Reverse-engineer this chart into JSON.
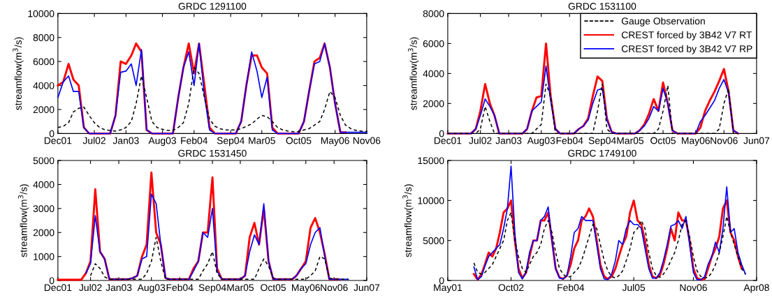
{
  "chart_data": [
    {
      "type": "line",
      "title": "GRDC 1291100",
      "ylabel": "streamflow(m$^{3}$/s)",
      "legend": false,
      "grid": false,
      "x": [
        "2001-12",
        "2002-01",
        "2002-02",
        "2002-03",
        "2002-04",
        "2002-05",
        "2002-06",
        "2002-07",
        "2002-08",
        "2002-09",
        "2002-10",
        "2002-11",
        "2002-12",
        "2003-01",
        "2003-02",
        "2003-03",
        "2003-04",
        "2003-05",
        "2003-06",
        "2003-07",
        "2003-08",
        "2003-09",
        "2003-10",
        "2003-11",
        "2003-12",
        "2004-01",
        "2004-02",
        "2004-03",
        "2004-04",
        "2004-05",
        "2004-06",
        "2004-07",
        "2004-08",
        "2004-09",
        "2004-10",
        "2004-11",
        "2004-12",
        "2005-01",
        "2005-02",
        "2005-03",
        "2005-04",
        "2005-05",
        "2005-06",
        "2005-07",
        "2005-08",
        "2005-09",
        "2005-10",
        "2005-11",
        "2005-12",
        "2006-01",
        "2006-02",
        "2006-03",
        "2006-04",
        "2006-05",
        "2006-06",
        "2006-07",
        "2006-08",
        "2006-09",
        "2006-10",
        "2006-11"
      ],
      "xlim": [
        "2001-12-01",
        "2006-11-01"
      ],
      "xticks": [
        {
          "value": "2001-12-01",
          "label": "Dec01"
        },
        {
          "value": "2002-07-01",
          "label": "Jul02"
        },
        {
          "value": "2003-01-01",
          "label": "Jan03"
        },
        {
          "value": "2003-08-01",
          "label": "Aug03"
        },
        {
          "value": "2004-02-01",
          "label": "Feb04"
        },
        {
          "value": "2004-09-01",
          "label": "Sep04"
        },
        {
          "value": "2005-03-01",
          "label": "Mar05"
        },
        {
          "value": "2005-10-01",
          "label": "Oct05"
        },
        {
          "value": "2006-05-01",
          "label": "May06"
        },
        {
          "value": "2006-11-01",
          "label": "Nov06"
        }
      ],
      "ylim": [
        0,
        10000
      ],
      "yticks": [
        0,
        2000,
        4000,
        6000,
        8000,
        10000
      ],
      "series": [
        {
          "color": "#000000",
          "line_style": "dashed",
          "values": [
            500,
            600,
            900,
            1800,
            2100,
            2200,
            1500,
            900,
            500,
            300,
            250,
            200,
            300,
            500,
            1000,
            2500,
            4800,
            3000,
            1000,
            500,
            350,
            250,
            250,
            500,
            900,
            2500,
            5500,
            5000,
            3000,
            1200,
            600,
            400,
            300,
            300,
            300,
            400,
            600,
            800,
            1200,
            1500,
            1400,
            1000,
            500,
            300,
            200,
            150,
            150,
            300,
            400,
            700,
            1000,
            2000,
            3500,
            3000,
            1500,
            700,
            400,
            250,
            200,
            150
          ]
        },
        {
          "color": "#ff0000",
          "line_style": "solid",
          "values": [
            4000,
            4300,
            5800,
            4500,
            4000,
            500,
            0,
            0,
            0,
            0,
            0,
            1500,
            6000,
            5800,
            6500,
            7500,
            6800,
            300,
            0,
            0,
            0,
            0,
            0,
            3000,
            5500,
            7500,
            5000,
            7500,
            4000,
            500,
            0,
            0,
            0,
            0,
            0,
            1000,
            4000,
            6500,
            6500,
            5500,
            5000,
            500,
            0,
            0,
            0,
            0,
            0,
            1000,
            3500,
            6000,
            6300,
            7500,
            5500,
            2500,
            100,
            100,
            null,
            null,
            null,
            null
          ]
        },
        {
          "color": "#0000ff",
          "line_style": "solid",
          "values": [
            3000,
            4300,
            4800,
            3500,
            3500,
            500,
            0,
            0,
            0,
            0,
            0,
            1500,
            5100,
            5200,
            5800,
            4000,
            7000,
            300,
            0,
            0,
            0,
            0,
            0,
            3000,
            5500,
            6800,
            4000,
            7500,
            3200,
            300,
            0,
            0,
            0,
            0,
            0,
            1000,
            4000,
            6800,
            5200,
            3000,
            4700,
            300,
            0,
            0,
            0,
            0,
            0,
            1000,
            3500,
            5800,
            6000,
            7500,
            5500,
            2500,
            100,
            100,
            100,
            100,
            100,
            100
          ]
        }
      ]
    },
    {
      "type": "line",
      "title": "GRDC 1531100",
      "ylabel": "streamflow(m$^{3}$/s)",
      "legend": "top right",
      "grid": false,
      "x": [
        "2001-12",
        "2002-01",
        "2002-02",
        "2002-03",
        "2002-04",
        "2002-05",
        "2002-06",
        "2002-07",
        "2002-08",
        "2002-09",
        "2002-10",
        "2002-11",
        "2002-12",
        "2003-01",
        "2003-02",
        "2003-03",
        "2003-04",
        "2003-05",
        "2003-06",
        "2003-07",
        "2003-08",
        "2003-09",
        "2003-10",
        "2003-11",
        "2003-12",
        "2004-01",
        "2004-02",
        "2004-03",
        "2004-04",
        "2004-05",
        "2004-06",
        "2004-07",
        "2004-08",
        "2004-09",
        "2004-10",
        "2004-11",
        "2004-12",
        "2005-01",
        "2005-02",
        "2005-03",
        "2005-04",
        "2005-05",
        "2005-06",
        "2005-07",
        "2005-08",
        "2005-09",
        "2005-10",
        "2005-11",
        "2005-12",
        "2006-01",
        "2006-02",
        "2006-03",
        "2006-04",
        "2006-05",
        "2006-06",
        "2006-07",
        "2006-08",
        "2006-09",
        "2006-10",
        "2006-11",
        "2006-12",
        "2007-01",
        "2007-02"
      ],
      "xlim": [
        "2001-12-01",
        "2007-06-01"
      ],
      "xticks": [
        {
          "value": "2001-12-01",
          "label": "Dec01"
        },
        {
          "value": "2002-07-01",
          "label": "Jul02"
        },
        {
          "value": "2003-01-01",
          "label": "Jan03"
        },
        {
          "value": "2003-08-01",
          "label": "Aug03"
        },
        {
          "value": "2004-02-01",
          "label": "Feb04"
        },
        {
          "value": "2004-09-01",
          "label": "Sep04"
        },
        {
          "value": "2005-03-01",
          "label": "Mar05"
        },
        {
          "value": "2005-10-01",
          "label": "Oct05"
        },
        {
          "value": "2006-05-01",
          "label": "May06"
        },
        {
          "value": "2006-11-01",
          "label": "Nov06"
        },
        {
          "value": "2007-06-01",
          "label": "Jun07"
        }
      ],
      "ylim": [
        0,
        8000
      ],
      "yticks": [
        0,
        2000,
        4000,
        6000,
        8000
      ],
      "series": [
        {
          "name": "Gauge Observation",
          "color": "#000000",
          "line_style": "dashed",
          "values": [
            0,
            0,
            0,
            0,
            0,
            0,
            0,
            300,
            1800,
            800,
            0,
            0,
            0,
            0,
            0,
            0,
            0,
            0,
            0,
            300,
            600,
            3300,
            2500,
            0,
            0,
            0,
            0,
            0,
            0,
            0,
            0,
            0,
            1500,
            3300,
            300,
            0,
            0,
            0,
            0,
            0,
            0,
            0,
            0,
            0,
            0,
            300,
            1500,
            3200,
            0,
            0,
            0,
            0,
            0,
            0,
            0,
            0,
            0,
            0,
            300,
            2000,
            3000,
            0,
            0
          ]
        },
        {
          "name": "CREST forced by 3B42 V7 RT",
          "color": "#ff0000",
          "line_style": "solid",
          "values": [
            0,
            0,
            0,
            0,
            0,
            0,
            300,
            1500,
            3300,
            2000,
            1200,
            0,
            0,
            0,
            0,
            0,
            0,
            300,
            1500,
            2400,
            2500,
            6000,
            2500,
            300,
            0,
            0,
            0,
            0,
            300,
            500,
            1000,
            2500,
            3800,
            3500,
            1000,
            100,
            0,
            0,
            0,
            0,
            0,
            200,
            600,
            1300,
            2300,
            1500,
            3400,
            2000,
            200,
            0,
            0,
            0,
            0,
            0,
            400,
            1500,
            2200,
            2800,
            3500,
            4300,
            2800,
            200,
            0
          ]
        },
        {
          "name": "CREST forced by 3B42 V7 RP",
          "color": "#0000ff",
          "line_style": "solid",
          "values": [
            0,
            0,
            0,
            0,
            0,
            0,
            300,
            1200,
            2300,
            1800,
            1200,
            0,
            0,
            0,
            0,
            0,
            0,
            300,
            1500,
            1800,
            2100,
            4500,
            2200,
            300,
            0,
            0,
            0,
            0,
            300,
            500,
            900,
            2000,
            2900,
            3000,
            900,
            100,
            0,
            0,
            0,
            0,
            0,
            200,
            500,
            1000,
            1800,
            1500,
            3000,
            2000,
            200,
            0,
            0,
            0,
            0,
            0,
            800,
            1200,
            1700,
            2200,
            3000,
            3600,
            2700,
            200,
            0
          ]
        }
      ]
    },
    {
      "type": "line",
      "title": "GRDC 1531450",
      "ylabel": "streamflow(m$^{3}$/s)",
      "legend": false,
      "grid": false,
      "x": [
        "2001-12",
        "2002-01",
        "2002-02",
        "2002-03",
        "2002-04",
        "2002-05",
        "2002-06",
        "2002-07",
        "2002-08",
        "2002-09",
        "2002-10",
        "2002-11",
        "2002-12",
        "2003-01",
        "2003-02",
        "2003-03",
        "2003-04",
        "2003-05",
        "2003-06",
        "2003-07",
        "2003-08",
        "2003-09",
        "2003-10",
        "2003-11",
        "2003-12",
        "2004-01",
        "2004-02",
        "2004-03",
        "2004-04",
        "2004-05",
        "2004-06",
        "2004-07",
        "2004-08",
        "2004-09",
        "2004-10",
        "2004-11",
        "2004-12",
        "2005-01",
        "2005-02",
        "2005-03",
        "2005-04",
        "2005-05",
        "2005-06",
        "2005-07",
        "2005-08",
        "2005-09",
        "2005-10",
        "2005-11",
        "2005-12",
        "2006-01",
        "2006-02",
        "2006-03",
        "2006-04",
        "2006-05",
        "2006-06",
        "2006-07",
        "2006-08",
        "2006-09",
        "2006-10",
        "2006-11",
        "2006-12",
        "2007-01",
        "2007-02"
      ],
      "xlim": [
        "2001-12-01",
        "2007-06-01"
      ],
      "xticks": [
        {
          "value": "2001-12-01",
          "label": "Dec01"
        },
        {
          "value": "2002-07-01",
          "label": "Jul02"
        },
        {
          "value": "2003-01-01",
          "label": "Jan03"
        },
        {
          "value": "2003-08-01",
          "label": "Aug03"
        },
        {
          "value": "2004-02-01",
          "label": "Feb04"
        },
        {
          "value": "2004-09-01",
          "label": "Sep04"
        },
        {
          "value": "2005-03-01",
          "label": "Mar05"
        },
        {
          "value": "2005-10-01",
          "label": "Oct05"
        },
        {
          "value": "2006-05-01",
          "label": "May06"
        },
        {
          "value": "2006-11-01",
          "label": "Nov06"
        },
        {
          "value": "2007-06-01",
          "label": "Jun07"
        }
      ],
      "ylim": [
        0,
        5000
      ],
      "yticks": [
        0,
        1000,
        2000,
        3000,
        4000,
        5000
      ],
      "series": [
        {
          "color": "#000000",
          "line_style": "dashed",
          "x": [
            "2002-07",
            "2002-08",
            "2002-09",
            "2002-10",
            "2002-11",
            "2002-12",
            "2003-01",
            "2003-02",
            "2003-03",
            "2003-04",
            "2003-05",
            "2003-06",
            "2003-07",
            "2003-08",
            "2003-09",
            "2003-10",
            "2003-11",
            "2003-12",
            "2004-01",
            "2004-02",
            "2004-03",
            "2004-04",
            "2004-05",
            "2004-06",
            "2004-07",
            "2004-08",
            "2004-09",
            "2004-10",
            "2004-11",
            "2004-12",
            "2005-01",
            "2005-02",
            "2005-03",
            "2005-04",
            "2005-05",
            "2005-06",
            "2005-07",
            "2005-08",
            "2005-09",
            "2005-10",
            "2005-11",
            "2005-12",
            "2006-01",
            "2006-02",
            "2006-03",
            "2006-04",
            "2006-05",
            "2006-06",
            "2006-07",
            "2006-08",
            "2006-09",
            "2006-10",
            "2006-11",
            "2006-12",
            "2007-01",
            "2007-02"
          ],
          "values": [
            200,
            700,
            500,
            150,
            50,
            50,
            50,
            50,
            50,
            50,
            50,
            50,
            300,
            800,
            1800,
            800,
            50,
            50,
            50,
            50,
            50,
            50,
            50,
            50,
            400,
            700,
            1200,
            300,
            50,
            50,
            50,
            50,
            50,
            50,
            50,
            50,
            500,
            900,
            600,
            100,
            50,
            50,
            50,
            50,
            50,
            50,
            50,
            200,
            400,
            1000,
            900,
            100,
            50,
            50,
            50,
            50
          ]
        },
        {
          "color": "#ff0000",
          "line_style": "solid",
          "values": [
            30,
            30,
            30,
            30,
            30,
            30,
            300,
            800,
            3800,
            1200,
            900,
            50,
            50,
            50,
            50,
            50,
            100,
            200,
            1000,
            1500,
            4500,
            2000,
            1500,
            100,
            50,
            50,
            50,
            50,
            50,
            500,
            800,
            2000,
            2000,
            4300,
            500,
            50,
            50,
            50,
            50,
            50,
            200,
            1800,
            2400,
            1500,
            3000,
            800,
            50,
            50,
            50,
            50,
            50,
            200,
            500,
            800,
            2200,
            2600,
            2000,
            1100,
            50,
            50,
            50,
            null,
            null
          ]
        },
        {
          "color": "#0000ff",
          "line_style": "solid",
          "values": [
            null,
            null,
            null,
            null,
            null,
            null,
            300,
            700,
            2700,
            1200,
            900,
            50,
            50,
            50,
            50,
            50,
            100,
            200,
            900,
            1000,
            3600,
            3200,
            1500,
            100,
            50,
            50,
            50,
            50,
            50,
            400,
            800,
            2000,
            1800,
            3000,
            400,
            50,
            50,
            50,
            50,
            50,
            200,
            1200,
            1900,
            1500,
            3200,
            800,
            50,
            50,
            50,
            50,
            50,
            200,
            500,
            700,
            1500,
            2000,
            2200,
            1000,
            50,
            50,
            50,
            50,
            50
          ]
        }
      ]
    },
    {
      "type": "line",
      "title": "GRDC 1749100",
      "ylabel": "streamflow(m$^{3}$/s)",
      "legend": false,
      "grid": false,
      "x": [
        "2001-12",
        "2002-01",
        "2002-02",
        "2002-03",
        "2002-04",
        "2002-05",
        "2002-06",
        "2002-07",
        "2002-08",
        "2002-09",
        "2002-10",
        "2002-11",
        "2002-12",
        "2003-01",
        "2003-02",
        "2003-03",
        "2003-04",
        "2003-05",
        "2003-06",
        "2003-07",
        "2003-08",
        "2003-09",
        "2003-10",
        "2003-11",
        "2003-12",
        "2004-01",
        "2004-02",
        "2004-03",
        "2004-04",
        "2004-05",
        "2004-06",
        "2004-07",
        "2004-08",
        "2004-09",
        "2004-10",
        "2004-11",
        "2004-12",
        "2005-01",
        "2005-02",
        "2005-03",
        "2005-04",
        "2005-05",
        "2005-06",
        "2005-07",
        "2005-08",
        "2005-09",
        "2005-10",
        "2005-11",
        "2005-12",
        "2006-01",
        "2006-02",
        "2006-03",
        "2006-04",
        "2006-05",
        "2006-06",
        "2006-07",
        "2006-08",
        "2006-09",
        "2006-10",
        "2006-11",
        "2006-12",
        "2007-01",
        "2007-02",
        "2007-03",
        "2007-04",
        "2007-05",
        "2007-06",
        "2007-07",
        "2007-08",
        "2007-09",
        "2007-10",
        "2007-11",
        "2007-12",
        "2008-01"
      ],
      "xlim": [
        "2001-05-01",
        "2008-04-01"
      ],
      "xticks": [
        {
          "value": "2001-05-01",
          "label": "May01"
        },
        {
          "value": "2002-10-01",
          "label": "Oct02"
        },
        {
          "value": "2004-02-01",
          "label": "Feb04"
        },
        {
          "value": "2005-07-01",
          "label": "Jul05"
        },
        {
          "value": "2006-11-01",
          "label": "Nov06"
        },
        {
          "value": "2008-04-01",
          "label": "Apr08"
        }
      ],
      "ylim": [
        0,
        15000
      ],
      "yticks": [
        0,
        5000,
        10000,
        15000
      ],
      "series": [
        {
          "color": "#000000",
          "line_style": "dashed",
          "values": [
            2200,
            1000,
            800,
            1000,
            1500,
            2000,
            3000,
            4000,
            5000,
            7500,
            8500,
            5000,
            3000,
            1500,
            1000,
            2000,
            3000,
            3500,
            4500,
            6500,
            7500,
            6000,
            3500,
            1500,
            800,
            400,
            500,
            1000,
            1500,
            2500,
            4000,
            5500,
            7000,
            6500,
            4500,
            2500,
            1200,
            500,
            300,
            600,
            1200,
            2500,
            4000,
            6000,
            6500,
            7500,
            6500,
            3500,
            1500,
            600,
            400,
            800,
            1500,
            2500,
            3500,
            5000,
            7000,
            7500,
            5500,
            3000,
            1200,
            500,
            300,
            400,
            1000,
            2000,
            3500,
            5500,
            8000,
            6000,
            4500,
            3000,
            1500,
            800
          ]
        },
        {
          "color": "#ff0000",
          "line_style": "solid",
          "values": [
            800,
            100,
            800,
            2000,
            3500,
            3000,
            4000,
            6000,
            8500,
            9000,
            10000,
            5000,
            1500,
            300,
            1000,
            3000,
            5000,
            5000,
            7500,
            7500,
            8500,
            5000,
            1500,
            400,
            200,
            600,
            2000,
            4000,
            5000,
            7500,
            8000,
            9000,
            8000,
            5000,
            2000,
            500,
            200,
            500,
            1500,
            3000,
            4500,
            5500,
            8500,
            10000,
            7500,
            7000,
            5000,
            2000,
            500,
            300,
            700,
            2000,
            4000,
            6500,
            5000,
            8500,
            7500,
            7500,
            5000,
            1500,
            300,
            100,
            200,
            1500,
            3000,
            4000,
            5500,
            9000,
            10000,
            6000,
            5000,
            3000,
            1500,
            null
          ]
        },
        {
          "color": "#0000ff",
          "line_style": "solid",
          "values": [
            1700,
            100,
            500,
            1800,
            3000,
            3500,
            4000,
            4500,
            6500,
            9000,
            14300,
            6000,
            1000,
            200,
            1000,
            3500,
            5000,
            5000,
            7500,
            8000,
            9200,
            5000,
            1500,
            300,
            200,
            600,
            3000,
            6000,
            6500,
            8000,
            7500,
            7500,
            7500,
            4500,
            1500,
            200,
            100,
            800,
            2500,
            5000,
            4500,
            6500,
            7500,
            7000,
            7000,
            6500,
            4000,
            1500,
            300,
            300,
            1000,
            2500,
            4500,
            6800,
            7000,
            7500,
            6500,
            8000,
            4500,
            1000,
            100,
            100,
            500,
            2000,
            3000,
            4800,
            3500,
            6500,
            11700,
            6000,
            6500,
            3500,
            2000,
            800
          ]
        }
      ]
    }
  ]
}
